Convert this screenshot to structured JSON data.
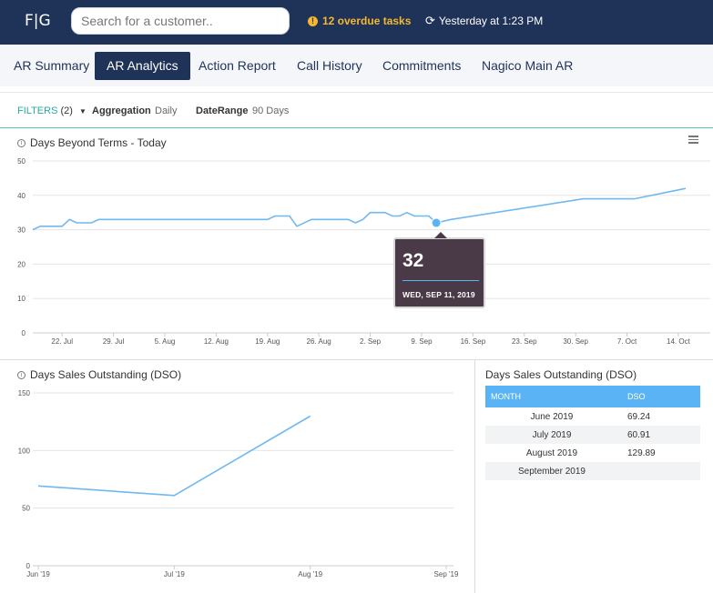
{
  "header": {
    "logo": "F|G",
    "search_placeholder": "Search for a customer..",
    "overdue_text": "12 overdue tasks",
    "sync_text": "Yesterday at 1:23 PM"
  },
  "tabs": [
    "AR Summary",
    "AR Analytics",
    "Action Report",
    "Call History",
    "Commitments",
    "Nagico Main AR"
  ],
  "active_tab": "AR Analytics",
  "filters": {
    "label": "FILTERS",
    "count": "(2)",
    "aggregation_label": "Aggregation",
    "aggregation_value": "Daily",
    "daterange_label": "DateRange",
    "daterange_value": "90 Days"
  },
  "colors": {
    "navy": "#1f3257",
    "accent_blue": "#5ab3f5",
    "teal": "#2aa9a0",
    "warning": "#f5b82e",
    "tooltip_bg": "#4a3946"
  },
  "chart_data": [
    {
      "type": "line",
      "title": "Days Beyond Terms - Today",
      "ylim": [
        0,
        50
      ],
      "yticks": [
        "0",
        "10",
        "20",
        "30",
        "40",
        "50"
      ],
      "xlim": [
        "2019-07-18",
        "2019-10-15"
      ],
      "xticks": [
        {
          "label": "22. Jul",
          "date": "2019-07-22"
        },
        {
          "label": "29. Jul",
          "date": "2019-07-29"
        },
        {
          "label": "5. Aug",
          "date": "2019-08-05"
        },
        {
          "label": "12. Aug",
          "date": "2019-08-12"
        },
        {
          "label": "19. Aug",
          "date": "2019-08-19"
        },
        {
          "label": "26. Aug",
          "date": "2019-08-26"
        },
        {
          "label": "2. Sep",
          "date": "2019-09-02"
        },
        {
          "label": "9. Sep",
          "date": "2019-09-09"
        },
        {
          "label": "16. Sep",
          "date": "2019-09-16"
        },
        {
          "label": "23. Sep",
          "date": "2019-09-23"
        },
        {
          "label": "30. Sep",
          "date": "2019-09-30"
        },
        {
          "label": "7. Oct",
          "date": "2019-10-07"
        },
        {
          "label": "14. Oct",
          "date": "2019-10-14"
        }
      ],
      "grid": true,
      "series": [
        {
          "points": [
            [
              "2019-07-18",
              30
            ],
            [
              "2019-07-19",
              31
            ],
            [
              "2019-07-21",
              31
            ],
            [
              "2019-07-22",
              31
            ],
            [
              "2019-07-23",
              33
            ],
            [
              "2019-07-24",
              32
            ],
            [
              "2019-07-26",
              32
            ],
            [
              "2019-07-27",
              33
            ],
            [
              "2019-08-19",
              33
            ],
            [
              "2019-08-20",
              34
            ],
            [
              "2019-08-22",
              34
            ],
            [
              "2019-08-23",
              31
            ],
            [
              "2019-08-25",
              33
            ],
            [
              "2019-08-30",
              33
            ],
            [
              "2019-08-31",
              32
            ],
            [
              "2019-09-01",
              33
            ],
            [
              "2019-09-02",
              35
            ],
            [
              "2019-09-04",
              35
            ],
            [
              "2019-09-05",
              34
            ],
            [
              "2019-09-06",
              34
            ],
            [
              "2019-09-07",
              35
            ],
            [
              "2019-09-08",
              34
            ],
            [
              "2019-09-10",
              34
            ],
            [
              "2019-09-11",
              32
            ],
            [
              "2019-09-13",
              33
            ],
            [
              "2019-10-01",
              39
            ],
            [
              "2019-10-08",
              39
            ],
            [
              "2019-10-15",
              42
            ]
          ]
        }
      ],
      "tooltip": {
        "value": "32",
        "date_label": "WED, SEP 11, 2019",
        "date": "2019-09-11"
      }
    },
    {
      "type": "line",
      "title": "Days Sales Outstanding (DSO)",
      "ylim": [
        0,
        150
      ],
      "yticks": [
        "0",
        "50",
        "100",
        "150"
      ],
      "categories": [
        "Jun '19",
        "Jul '19",
        "Aug '19",
        "Sep '19"
      ],
      "grid": true,
      "series": [
        {
          "values": [
            69.24,
            60.91,
            129.89,
            null
          ]
        }
      ]
    }
  ],
  "dso_table": {
    "columns": [
      "MONTH",
      "DSO"
    ],
    "rows": [
      [
        "June 2019",
        "69.24"
      ],
      [
        "July 2019",
        "60.91"
      ],
      [
        "August 2019",
        "129.89"
      ],
      [
        "September 2019",
        ""
      ]
    ]
  }
}
